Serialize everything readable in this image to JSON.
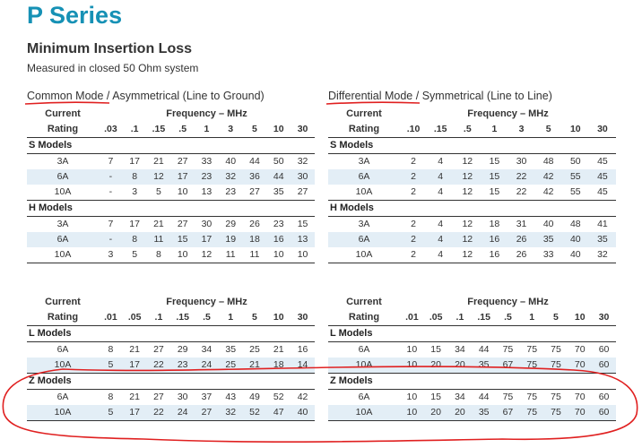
{
  "title": "P Series",
  "subtitle": "Minimum Insertion Loss",
  "caption": "Measured in closed 50 Ohm system",
  "left_mode": {
    "primary": "Common Mode",
    "sep": " / ",
    "secondary": "Asymmetrical (Line to Ground)"
  },
  "right_mode": {
    "primary": "Differential Mode",
    "sep": " / ",
    "secondary": "Symmetrical (Line to Line)"
  },
  "header": {
    "current": "Current",
    "rating": "Rating",
    "freq": "Frequency – MHz"
  },
  "tables": {
    "top_left": {
      "freqs": [
        ".03",
        ".1",
        ".15",
        ".5",
        "1",
        "3",
        "5",
        "10",
        "30"
      ],
      "groups": [
        {
          "name": "S Models",
          "rows": [
            {
              "rating": "3A",
              "values": [
                "7",
                "17",
                "21",
                "27",
                "33",
                "40",
                "44",
                "50",
                "32"
              ]
            },
            {
              "rating": "6A",
              "values": [
                "-",
                "8",
                "12",
                "17",
                "23",
                "32",
                "36",
                "44",
                "30"
              ]
            },
            {
              "rating": "10A",
              "values": [
                "-",
                "3",
                "5",
                "10",
                "13",
                "23",
                "27",
                "35",
                "27"
              ]
            }
          ]
        },
        {
          "name": "H Models",
          "rows": [
            {
              "rating": "3A",
              "values": [
                "7",
                "17",
                "21",
                "27",
                "30",
                "29",
                "26",
                "23",
                "15"
              ]
            },
            {
              "rating": "6A",
              "values": [
                "-",
                "8",
                "11",
                "15",
                "17",
                "19",
                "18",
                "16",
                "13"
              ]
            },
            {
              "rating": "10A",
              "values": [
                "3",
                "5",
                "8",
                "10",
                "12",
                "11",
                "11",
                "10",
                "10"
              ]
            }
          ]
        }
      ]
    },
    "top_right": {
      "freqs": [
        ".10",
        ".15",
        ".5",
        "1",
        "3",
        "5",
        "10",
        "30"
      ],
      "groups": [
        {
          "name": "S Models",
          "rows": [
            {
              "rating": "3A",
              "values": [
                "2",
                "4",
                "12",
                "15",
                "30",
                "48",
                "50",
                "45"
              ]
            },
            {
              "rating": "6A",
              "values": [
                "2",
                "4",
                "12",
                "15",
                "22",
                "42",
                "55",
                "45"
              ]
            },
            {
              "rating": "10A",
              "values": [
                "2",
                "4",
                "12",
                "15",
                "22",
                "42",
                "55",
                "45"
              ]
            }
          ]
        },
        {
          "name": "H Models",
          "rows": [
            {
              "rating": "3A",
              "values": [
                "2",
                "4",
                "12",
                "18",
                "31",
                "40",
                "48",
                "41"
              ]
            },
            {
              "rating": "6A",
              "values": [
                "2",
                "4",
                "12",
                "16",
                "26",
                "35",
                "40",
                "35"
              ]
            },
            {
              "rating": "10A",
              "values": [
                "2",
                "4",
                "12",
                "16",
                "26",
                "33",
                "40",
                "32"
              ]
            }
          ]
        }
      ]
    },
    "bottom_left": {
      "freqs": [
        ".01",
        ".05",
        ".1",
        ".15",
        ".5",
        "1",
        "5",
        "10",
        "30"
      ],
      "groups": [
        {
          "name": "L Models",
          "rows": [
            {
              "rating": "6A",
              "values": [
                "8",
                "21",
                "27",
                "29",
                "34",
                "35",
                "25",
                "21",
                "16"
              ]
            },
            {
              "rating": "10A",
              "values": [
                "5",
                "17",
                "22",
                "23",
                "24",
                "25",
                "21",
                "18",
                "14"
              ]
            }
          ]
        },
        {
          "name": "Z Models",
          "rows": [
            {
              "rating": "6A",
              "values": [
                "8",
                "21",
                "27",
                "30",
                "37",
                "43",
                "49",
                "52",
                "42"
              ]
            },
            {
              "rating": "10A",
              "values": [
                "5",
                "17",
                "22",
                "24",
                "27",
                "32",
                "52",
                "47",
                "40"
              ]
            }
          ]
        }
      ]
    },
    "bottom_right": {
      "freqs": [
        ".01",
        ".05",
        ".1",
        ".15",
        ".5",
        "1",
        "5",
        "10",
        "30"
      ],
      "groups": [
        {
          "name": "L Models",
          "rows": [
            {
              "rating": "6A",
              "values": [
                "10",
                "15",
                "34",
                "44",
                "75",
                "75",
                "75",
                "70",
                "60"
              ]
            },
            {
              "rating": "10A",
              "values": [
                "10",
                "20",
                "20",
                "35",
                "67",
                "75",
                "75",
                "70",
                "60"
              ]
            }
          ]
        },
        {
          "name": "Z Models",
          "rows": [
            {
              "rating": "6A",
              "values": [
                "10",
                "15",
                "34",
                "44",
                "75",
                "75",
                "75",
                "70",
                "60"
              ]
            },
            {
              "rating": "10A",
              "values": [
                "10",
                "20",
                "20",
                "35",
                "67",
                "75",
                "75",
                "70",
                "60"
              ]
            }
          ]
        }
      ]
    }
  }
}
